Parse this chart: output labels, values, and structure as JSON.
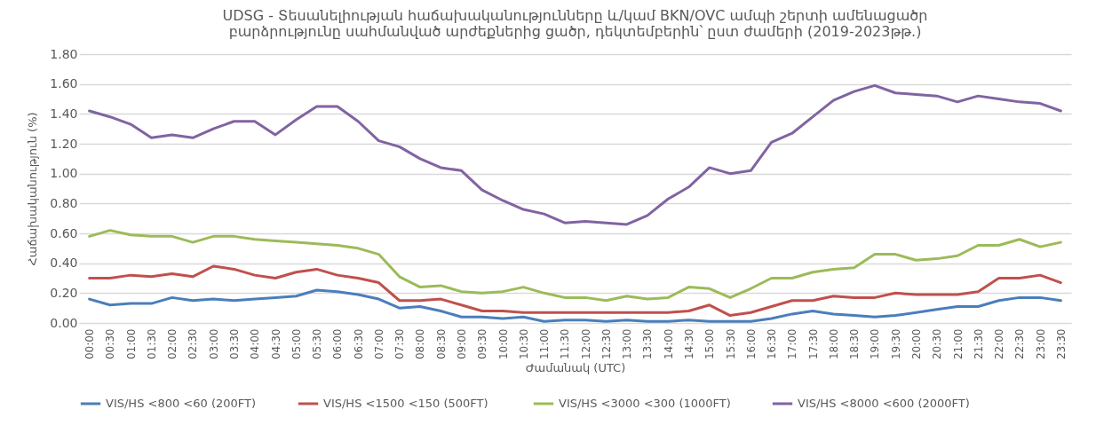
{
  "chart_data": {
    "type": "line",
    "title": "UDSG - Տեսանելիության հաճախականությունները և/կամ BKN/OVC ամպի շերտի ամենացածր\nբարձրությունը սահմանված արժեքներից ցածր, դեկտեմբերին՝ ըստ ժամերի (2019-2023թթ.)",
    "xlabel": "Ժամանակ (UTC)",
    "ylabel": "Հաճախականություն (%)",
    "categories": [
      "00:00",
      "00:30",
      "01:00",
      "01:30",
      "02:00",
      "02:30",
      "03:00",
      "03:30",
      "04:00",
      "04:30",
      "05:00",
      "05:30",
      "06:00",
      "06:30",
      "07:00",
      "07:30",
      "08:00",
      "08:30",
      "09:00",
      "09:30",
      "10:00",
      "10:30",
      "11:00",
      "11:30",
      "12:00",
      "12:30",
      "13:00",
      "13:30",
      "14:00",
      "14:30",
      "15:00",
      "15:30",
      "16:00",
      "16:30",
      "17:00",
      "17:30",
      "18:00",
      "18:30",
      "19:00",
      "19:30",
      "20:00",
      "20:30",
      "21:00",
      "21:30",
      "22:00",
      "22:30",
      "23:00",
      "23:30"
    ],
    "series": [
      {
        "name": "VIS/HS <800 <60 (200FT)",
        "color": "#4a7ebb",
        "values": [
          0.16,
          0.12,
          0.13,
          0.13,
          0.17,
          0.15,
          0.16,
          0.15,
          0.16,
          0.17,
          0.18,
          0.22,
          0.21,
          0.19,
          0.16,
          0.1,
          0.11,
          0.08,
          0.04,
          0.04,
          0.03,
          0.04,
          0.01,
          0.02,
          0.02,
          0.01,
          0.02,
          0.01,
          0.01,
          0.02,
          0.01,
          0.01,
          0.01,
          0.03,
          0.06,
          0.08,
          0.06,
          0.05,
          0.04,
          0.05,
          0.07,
          0.09,
          0.11,
          0.11,
          0.15,
          0.17,
          0.17,
          0.15
        ]
      },
      {
        "name": "VIS/HS <1500 <150  (500FT)",
        "color": "#c0504d",
        "values": [
          0.3,
          0.3,
          0.32,
          0.31,
          0.33,
          0.31,
          0.38,
          0.36,
          0.32,
          0.3,
          0.34,
          0.36,
          0.32,
          0.3,
          0.27,
          0.15,
          0.15,
          0.16,
          0.12,
          0.08,
          0.08,
          0.07,
          0.07,
          0.07,
          0.07,
          0.07,
          0.07,
          0.07,
          0.07,
          0.08,
          0.12,
          0.05,
          0.07,
          0.11,
          0.15,
          0.15,
          0.18,
          0.17,
          0.17,
          0.2,
          0.19,
          0.19,
          0.19,
          0.21,
          0.3,
          0.3,
          0.32,
          0.27
        ]
      },
      {
        "name": "VIS/HS <3000 <300 (1000FT)",
        "color": "#9bbb59",
        "values": [
          0.58,
          0.62,
          0.59,
          0.58,
          0.58,
          0.54,
          0.58,
          0.58,
          0.56,
          0.55,
          0.54,
          0.53,
          0.52,
          0.5,
          0.46,
          0.31,
          0.24,
          0.25,
          0.21,
          0.2,
          0.21,
          0.24,
          0.2,
          0.17,
          0.17,
          0.15,
          0.18,
          0.16,
          0.17,
          0.24,
          0.23,
          0.17,
          0.23,
          0.3,
          0.3,
          0.34,
          0.36,
          0.37,
          0.46,
          0.46,
          0.42,
          0.43,
          0.45,
          0.52,
          0.52,
          0.56,
          0.51,
          0.54
        ]
      },
      {
        "name": "VIS/HS <8000 <600 (2000FT)",
        "color": "#8064a2",
        "values": [
          1.42,
          1.38,
          1.33,
          1.24,
          1.26,
          1.24,
          1.3,
          1.35,
          1.35,
          1.26,
          1.36,
          1.45,
          1.45,
          1.35,
          1.22,
          1.18,
          1.1,
          1.04,
          1.02,
          0.89,
          0.82,
          0.76,
          0.73,
          0.67,
          0.68,
          0.67,
          0.66,
          0.72,
          0.83,
          0.91,
          1.04,
          1.0,
          1.02,
          1.21,
          1.27,
          1.38,
          1.49,
          1.55,
          1.59,
          1.54,
          1.53,
          1.52,
          1.48,
          1.52,
          1.5,
          1.48,
          1.47,
          1.42
        ]
      }
    ],
    "ylim": [
      0,
      1.8
    ],
    "yticks": [
      {
        "value": 0,
        "label": "0.00"
      },
      {
        "value": 0.2,
        "label": "0.20"
      },
      {
        "value": 0.4,
        "label": "0.40"
      },
      {
        "value": 0.6,
        "label": "0.60"
      },
      {
        "value": 0.8,
        "label": "0.80"
      },
      {
        "value": 1.0,
        "label": "1.00"
      },
      {
        "value": 1.2,
        "label": "1.20"
      },
      {
        "value": 1.4,
        "label": "1.40"
      },
      {
        "value": 1.6,
        "label": "1.60"
      },
      {
        "value": 1.8,
        "label": "1.80"
      }
    ],
    "grid": "y",
    "legend": "bottom",
    "marker": "none",
    "line_style": "solid"
  }
}
